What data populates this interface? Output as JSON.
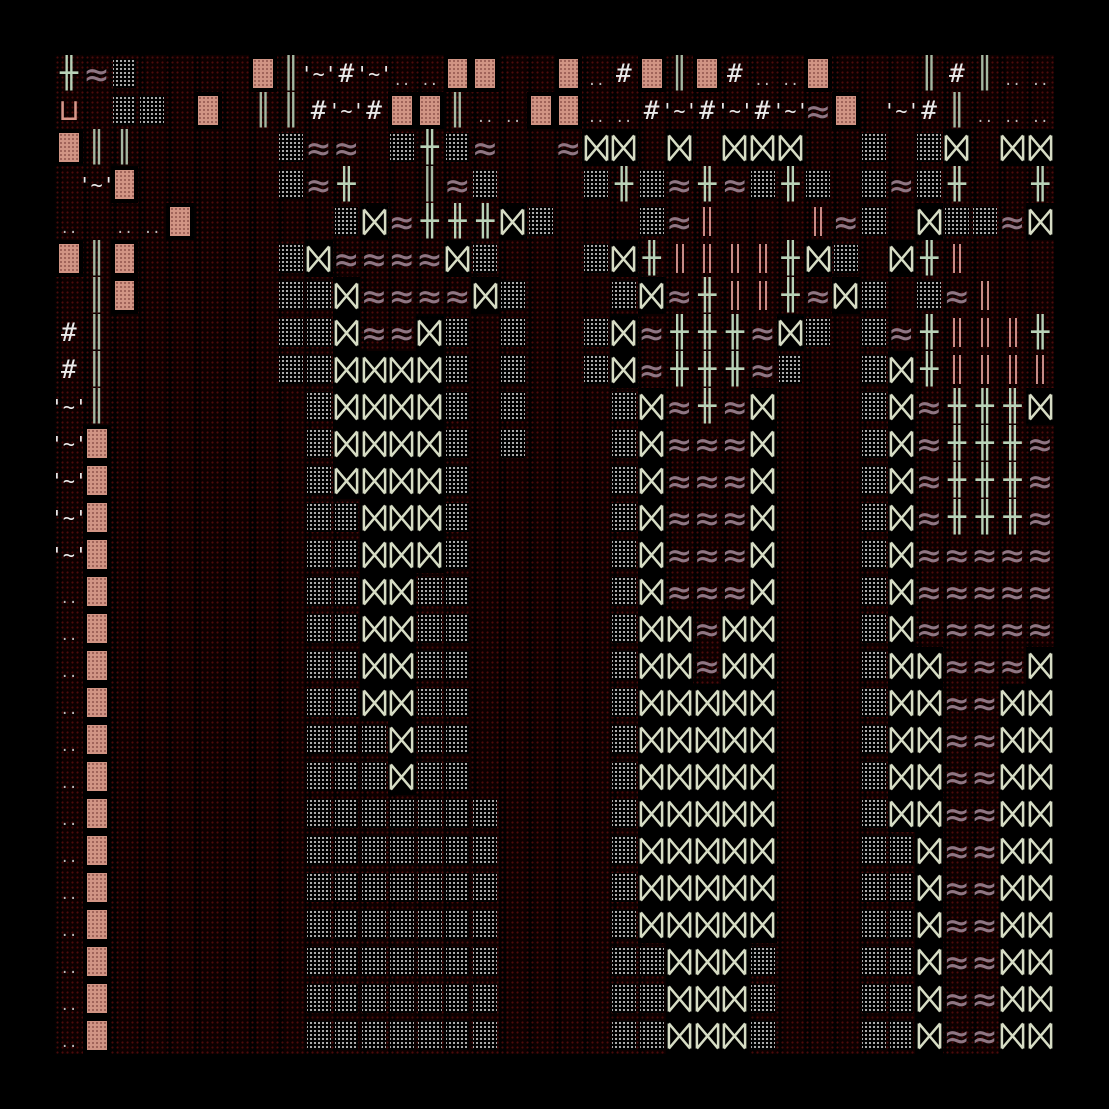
{
  "game": {
    "view": "dungeon-map",
    "grid_cols": 36,
    "grid_rows": 27,
    "palette": {
      "background": "#000000",
      "floor_dot": "#821414",
      "brick": "#d09484",
      "dots": "#bdbdbd",
      "bowtie": "#d6dcc4",
      "wave": "#8f7683",
      "cross": "#b9d2b8",
      "text": "#eaeaea",
      "pink_bar": "#c88b86"
    },
    "glyphs": {
      "~": "≈",
      "+": "╫",
      "|": "║",
      "#": "#",
      "t": "'~'",
      ".": "..",
      "p": "╎"
    },
    "rows": [
      "+~o____B|t#t..BB__B.#B|B#..B___|#|....|#|B",
      "P_oo_B_||#t#BB|..BB..#t#t#t~B_t#|.....t~..B",
      "B||_____o~~_o+o~__~XX_X_XXX__o_oX_XX_o",
      "_tB_____o~+__|~o___o+o~+~o+o_o~o+__+o~",
      "._..B_____oX~+++Xo___o~p___p~o_Xoo~X~_pX",
      "B|B_____oX~~~~Xo___oX+pppp+Xo_X+p____+X",
      "_|B_____ooX~~~~Xo___oX~+pp+~Xo_o~p___p~X",
      "#|______ooX~~Xo_o__oX~+++~Xo_o~+ppp+~o",
      "#|______ooXXXXo_o__oX~+++~o__oX+pppp+~o",
      "t|_______oXXXXo_o___oX~+~X___oX~+++X~o",
      "tB_______oXXXXo_o___oX~~~X___oX~+++~Xo",
      "tB_______oXXXXo_____oX~~~X___oX~+++~Xo",
      "tB_______ooXXXo_____oX~~~X___oX~+++~Xo",
      "tB_______ooXXXo_____oX~~~X___oX~~~~~Xo",
      ".B_______ooXXoo_____oX~~~X___oX~~~~~Xo",
      ".B_______ooXXoo_____oXX~XX___oX~~~~~Xo",
      ".B_______ooXXoo_____oXX~XX___oXX~~~XXo",
      ".B_______ooXXoo_____oXXXXX___oXX~~XXXo",
      ".B_______oooXoo_____oXXXXX___oXX~~XXXo",
      ".B_______oooXoo_____oXXXXX___oXX~~XXXo",
      ".B_______ooooooo____oXXXXX___oXX~~XXXo",
      ".B_______ooooooo____oXXXXX___ooX~~XXXo",
      ".B_______ooooooo____oXXXXX___ooX~~XXXo",
      ".B_______ooooooo____oXXXXX___ooX~~XXXo",
      ".B_______ooooooo____ooXXXo___ooX~~XXoo",
      ".B_______ooooooo____ooXXXo___ooX~~XXoo",
      ".B_______ooooooo____ooXXXo___ooX~~XXoo"
    ]
  }
}
